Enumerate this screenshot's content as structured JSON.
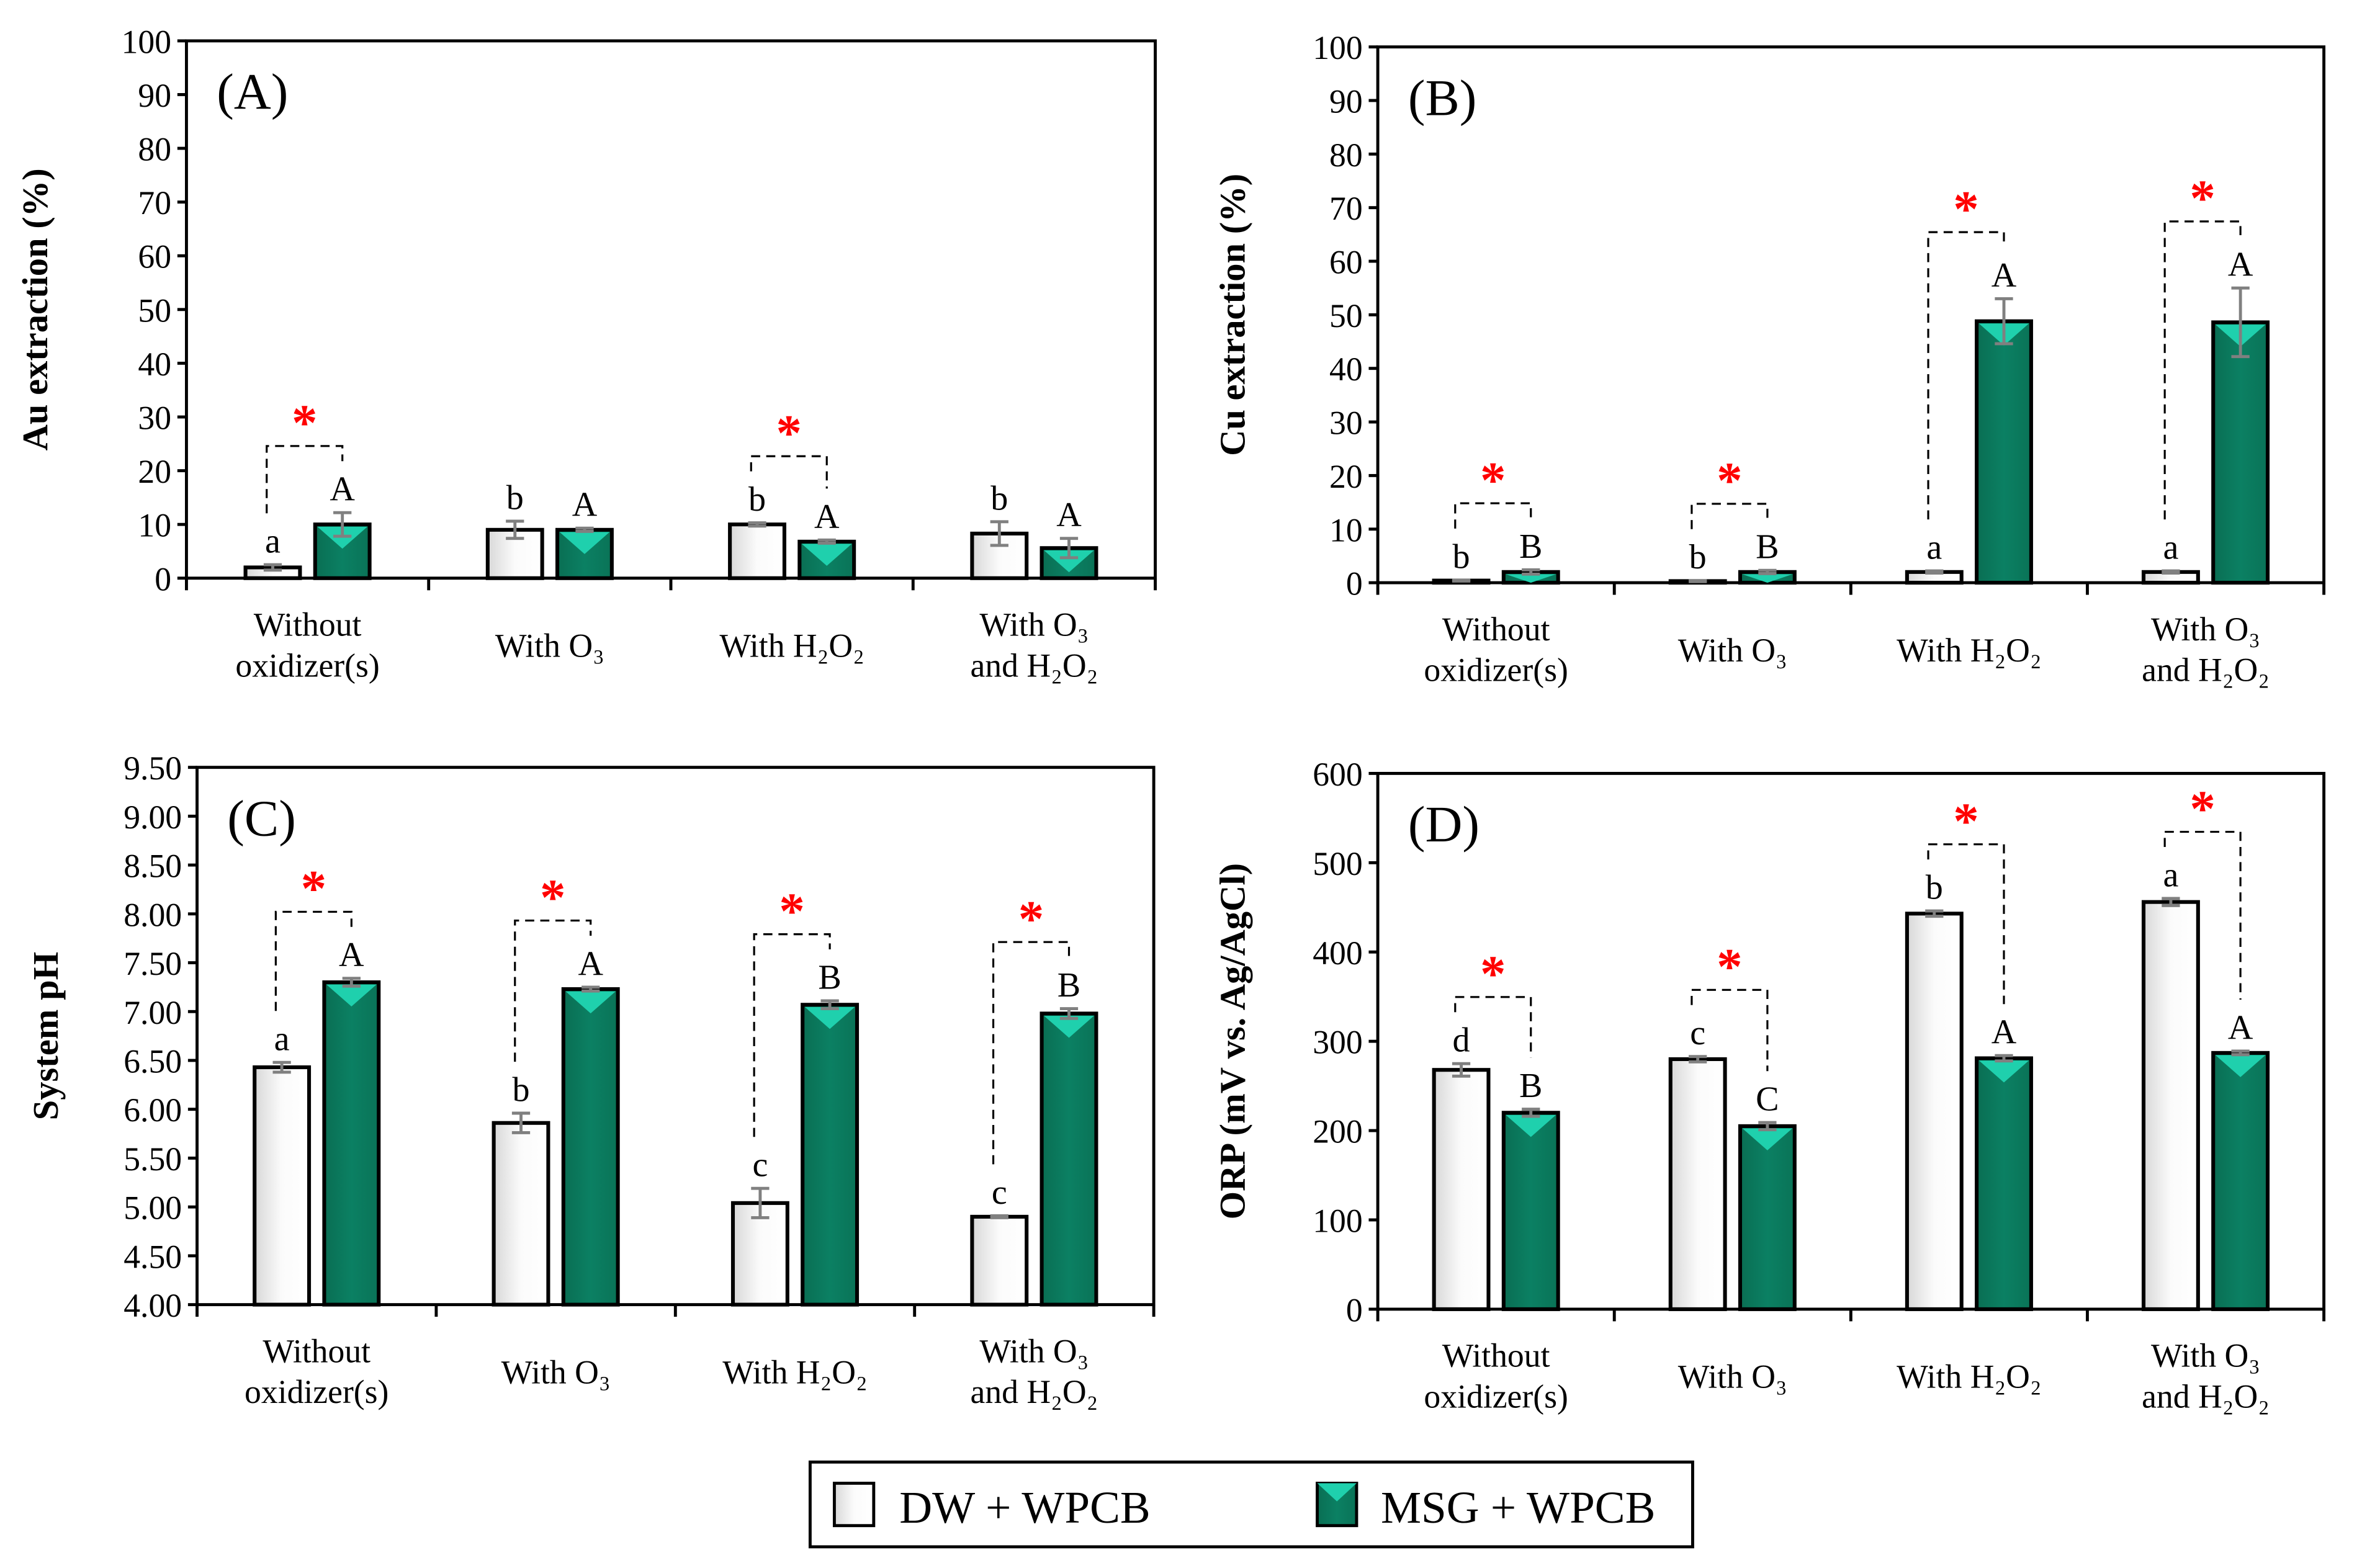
{
  "legend": {
    "items": [
      {
        "label": "DW + WPCB",
        "color": "#ffffff"
      },
      {
        "label": "MSG + WPCB",
        "color": "#0b7f60"
      }
    ]
  },
  "colors": {
    "dw": "#ffffff",
    "msg": "#0b7f60",
    "msg_light": "#1fd0ad",
    "star": "#ff0000",
    "error_bar": "#808080"
  },
  "chart_data": [
    {
      "type": "bar",
      "panel_label": "(A)",
      "ylabel": "Au extraction (%)",
      "ylim": [
        0,
        100
      ],
      "yticks": [
        "0",
        "10",
        "20",
        "30",
        "40",
        "50",
        "60",
        "70",
        "80",
        "90",
        "100"
      ],
      "ytick_values": [
        0,
        10,
        20,
        30,
        40,
        50,
        60,
        70,
        80,
        90,
        100
      ],
      "categories": [
        [
          "Without",
          "oxidizer(s)"
        ],
        [
          "With O₃"
        ],
        [
          "With H₂O₂"
        ],
        [
          "With O₃",
          "and H₂O₂"
        ]
      ],
      "series": [
        {
          "name": "DW + WPCB",
          "values": [
            2.0,
            9.0,
            10.0,
            8.3
          ],
          "errors": [
            0.5,
            1.6,
            0.3,
            2.2
          ],
          "letters": [
            "a",
            "b",
            "b",
            "b"
          ]
        },
        {
          "name": "MSG + WPCB",
          "values": [
            10.0,
            9.0,
            6.8,
            5.6
          ],
          "errors": [
            2.2,
            0.3,
            0.3,
            1.8
          ],
          "letters": [
            "A",
            "A",
            "A",
            "A"
          ]
        }
      ],
      "significance": [
        true,
        false,
        true,
        false
      ],
      "star": "*"
    },
    {
      "type": "bar",
      "panel_label": "(B)",
      "ylabel": "Cu extraction (%)",
      "ylim": [
        0,
        100
      ],
      "yticks": [
        "0",
        "10",
        "20",
        "30",
        "40",
        "50",
        "60",
        "70",
        "80",
        "90",
        "100"
      ],
      "ytick_values": [
        0,
        10,
        20,
        30,
        40,
        50,
        60,
        70,
        80,
        90,
        100
      ],
      "categories": [
        [
          "Without",
          "oxidizer(s)"
        ],
        [
          "With O₃"
        ],
        [
          "With H₂O₂"
        ],
        [
          "With O₃",
          "and H₂O₂"
        ]
      ],
      "series": [
        {
          "name": "DW + WPCB",
          "values": [
            0.4,
            0.3,
            2.0,
            2.0
          ],
          "errors": [
            0.1,
            0.1,
            0.2,
            0.2
          ],
          "letters": [
            "b",
            "b",
            "a",
            "a"
          ]
        },
        {
          "name": "MSG + WPCB",
          "values": [
            2.0,
            2.0,
            48.8,
            48.6
          ],
          "errors": [
            0.4,
            0.3,
            4.2,
            6.4
          ],
          "letters": [
            "B",
            "B",
            "A",
            "A"
          ]
        }
      ],
      "significance": [
        true,
        true,
        true,
        true
      ],
      "star": "*"
    },
    {
      "type": "bar",
      "panel_label": "(C)",
      "ylabel": "System pH",
      "ylim": [
        4,
        9.5
      ],
      "yticks": [
        "4.00",
        "4.50",
        "5.00",
        "5.50",
        "6.00",
        "6.50",
        "7.00",
        "7.50",
        "8.00",
        "8.50",
        "9.00",
        "9.50"
      ],
      "ytick_values": [
        4,
        4.5,
        5,
        5.5,
        6,
        6.5,
        7,
        7.5,
        8,
        8.5,
        9,
        9.5
      ],
      "categories": [
        [
          "Without",
          "oxidizer(s)"
        ],
        [
          "With O₃"
        ],
        [
          "With H₂O₂"
        ],
        [
          "With O₃",
          "and H₂O₂"
        ]
      ],
      "series": [
        {
          "name": "DW + WPCB",
          "values": [
            6.43,
            5.86,
            5.04,
            4.9
          ],
          "errors": [
            0.05,
            0.1,
            0.15,
            0.01
          ],
          "letters": [
            "a",
            "b",
            "c",
            "c"
          ]
        },
        {
          "name": "MSG + WPCB",
          "values": [
            7.3,
            7.23,
            7.07,
            6.98
          ],
          "errors": [
            0.04,
            0.02,
            0.04,
            0.05
          ],
          "letters": [
            "A",
            "A",
            "B",
            "B"
          ]
        }
      ],
      "significance": [
        true,
        true,
        true,
        true
      ],
      "star": "*"
    },
    {
      "type": "bar",
      "panel_label": "(D)",
      "ylabel": "ORP (mV vs. Ag/AgCl)",
      "ylim": [
        0,
        600
      ],
      "yticks": [
        "0",
        "100",
        "200",
        "300",
        "400",
        "500",
        "600"
      ],
      "ytick_values": [
        0,
        100,
        200,
        300,
        400,
        500,
        600
      ],
      "categories": [
        [
          "Without",
          "oxidizer(s)"
        ],
        [
          "With O₃"
        ],
        [
          "With H₂O₂"
        ],
        [
          "With O₃",
          "and H₂O₂"
        ]
      ],
      "series": [
        {
          "name": "DW + WPCB",
          "values": [
            268,
            280,
            443,
            456
          ],
          "errors": [
            7,
            3,
            3,
            4
          ],
          "letters": [
            "d",
            "c",
            "b",
            "a"
          ]
        },
        {
          "name": "MSG + WPCB",
          "values": [
            220,
            205,
            281,
            287
          ],
          "errors": [
            4,
            4,
            3,
            2
          ],
          "letters": [
            "B",
            "C",
            "A",
            "A"
          ]
        }
      ],
      "significance": [
        true,
        true,
        true,
        true
      ],
      "star": "*"
    }
  ]
}
